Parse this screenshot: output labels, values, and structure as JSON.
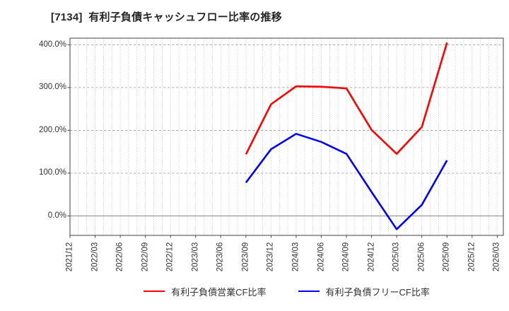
{
  "title": "[7134]  有利子負債キャッシュフロー比率の推移",
  "chart_data": {
    "type": "line",
    "title": "[7134] 有利子負債キャッシュフロー比率の推移",
    "x_axis": {
      "tick_labels": [
        "2021/12",
        "2022/03",
        "2022/06",
        "2022/09",
        "2022/12",
        "2023/03",
        "2023/06",
        "2023/09",
        "2023/12",
        "2024/03",
        "2024/06",
        "2024/09",
        "2024/12",
        "2025/03",
        "2025/06",
        "2025/09",
        "2025/12",
        "2026/03"
      ],
      "minor_gridlines": "monthly"
    },
    "y_axis": {
      "tick_labels": [
        "400.0%",
        "300.0%",
        "200.0%",
        "100.0%",
        "0.0%"
      ],
      "tick_values": [
        400,
        300,
        200,
        100,
        0
      ],
      "unit": "%",
      "ylim": [
        -45,
        415
      ]
    },
    "grid": true,
    "legend_position": "bottom",
    "series": [
      {
        "name": "有利子負債営業CF比率",
        "color": "#ff0000",
        "x": [
          "2023/09",
          "2023/12",
          "2024/03",
          "2024/06",
          "2024/09",
          "2024/12",
          "2025/03",
          "2025/06",
          "2025/09"
        ],
        "values": [
          144,
          261,
          303,
          302,
          298,
          201,
          145,
          208,
          405
        ]
      },
      {
        "name": "有利子負債フリーCF比率",
        "color": "#0000ff",
        "x": [
          "2023/09",
          "2023/12",
          "2024/03",
          "2024/06",
          "2024/09",
          "2024/12",
          "2025/03",
          "2025/06",
          "2025/09"
        ],
        "values": [
          78,
          156,
          192,
          173,
          145,
          56,
          -31,
          26,
          130
        ]
      }
    ]
  }
}
